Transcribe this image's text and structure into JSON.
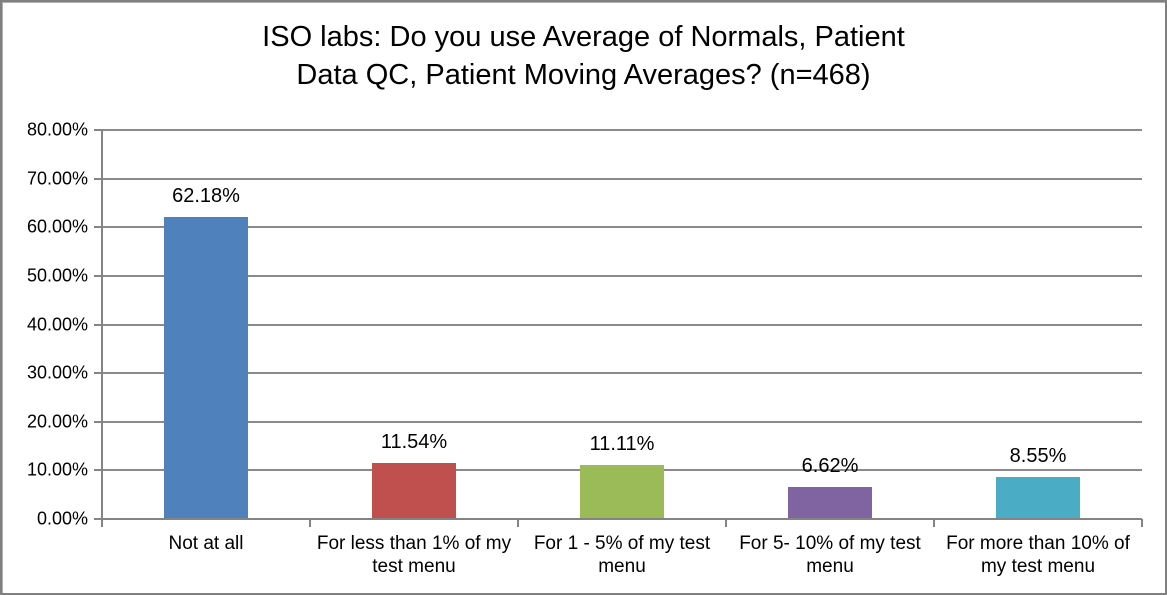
{
  "chart_data": {
    "type": "bar",
    "title": "ISO labs: Do you use Average of Normals, Patient Data QC, Patient Moving Averages? (n=468)",
    "title_lines": [
      "ISO labs: Do you use Average of Normals, Patient",
      "Data QC, Patient Moving Averages? (n=468)"
    ],
    "categories": [
      "Not at all",
      "For less than 1% of my test menu",
      "For 1 - 5% of my test menu",
      "For 5- 10% of my test menu",
      "For more than 10% of my test menu"
    ],
    "values": [
      62.18,
      11.54,
      11.11,
      6.62,
      8.55
    ],
    "value_labels": [
      "62.18%",
      "11.54%",
      "11.11%",
      "6.62%",
      "8.55%"
    ],
    "bar_colors": [
      "#4F81BD",
      "#C0504D",
      "#9BBB59",
      "#8064A2",
      "#4BACC6"
    ],
    "xlabel": "",
    "ylabel": "",
    "ylim": [
      0,
      80
    ],
    "ytick_step": 10,
    "ytick_labels": [
      "0.00%",
      "10.00%",
      "20.00%",
      "30.00%",
      "40.00%",
      "50.00%",
      "60.00%",
      "70.00%",
      "80.00%"
    ],
    "grid": true,
    "legend": false,
    "gridline_color": "#8A8A8A",
    "axis_color": "#848484",
    "background": "#FFFFFF",
    "border_color": "#808080"
  }
}
